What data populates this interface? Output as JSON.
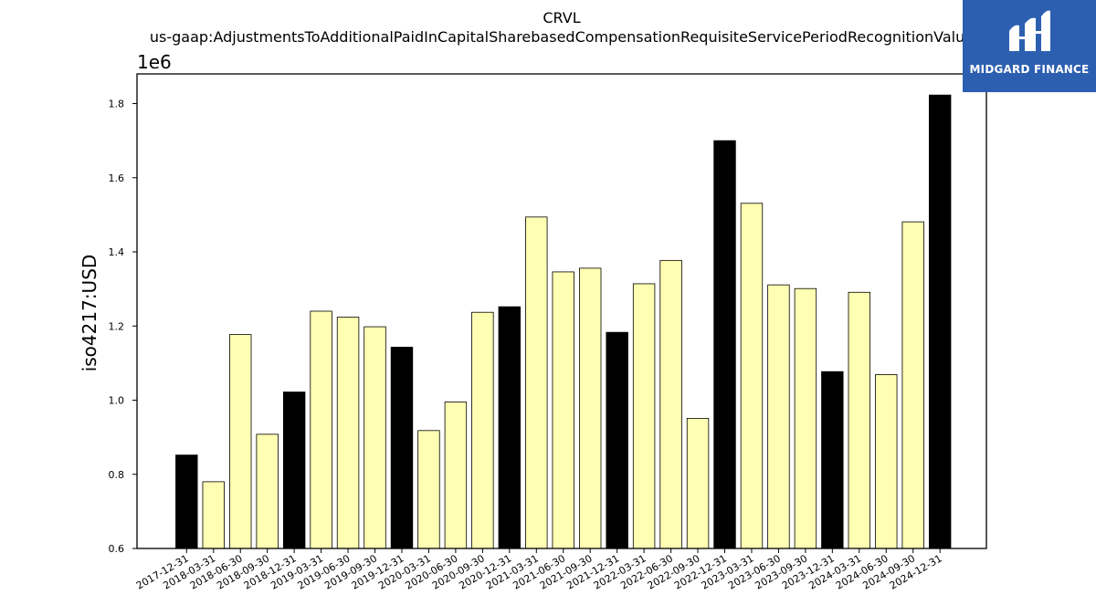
{
  "chart_data": {
    "type": "bar",
    "title": "CRVL",
    "subtitle": "us-gaap:AdjustmentsToAdditionalPaidInCapitalSharebasedCompensationRequisiteServicePeriodRecognitionValue",
    "ylabel": "iso4217:USD",
    "xlabel": "",
    "offset_label": "1e6",
    "ylim": [
      600000,
      1880000
    ],
    "yticks": [
      0.6,
      0.8,
      1.0,
      1.2,
      1.4,
      1.6,
      1.8
    ],
    "ytick_labels": [
      "0.6",
      "0.8",
      "1.0",
      "1.2",
      "1.4",
      "1.6",
      "1.8"
    ],
    "grid": false,
    "categories": [
      "2017-12-31",
      "2018-03-31",
      "2018-06-30",
      "2018-09-30",
      "2018-12-31",
      "2019-03-31",
      "2019-06-30",
      "2019-09-30",
      "2019-12-31",
      "2020-03-31",
      "2020-06-30",
      "2020-09-30",
      "2020-12-31",
      "2021-03-31",
      "2021-06-30",
      "2021-09-30",
      "2021-12-31",
      "2022-03-31",
      "2022-06-30",
      "2022-09-30",
      "2022-12-31",
      "2023-03-31",
      "2023-06-30",
      "2023-09-30",
      "2023-12-31",
      "2024-03-31",
      "2024-06-30",
      "2024-09-30",
      "2024-12-31"
    ],
    "values": [
      852000,
      780000,
      1177000,
      908000,
      1022000,
      1240000,
      1224000,
      1198000,
      1143000,
      918000,
      995000,
      1237000,
      1252000,
      1494000,
      1346000,
      1356000,
      1183000,
      1314000,
      1377000,
      951000,
      1700000,
      1531000,
      1311000,
      1301000,
      1077000,
      1291000,
      1069000,
      1481000,
      1823000
    ],
    "bar_colors": {
      "year_end": "#000000",
      "quarter": "#ffffb3"
    }
  },
  "logo": {
    "text": "MIDGARD FINANCE",
    "background": "#2c5fb0"
  }
}
